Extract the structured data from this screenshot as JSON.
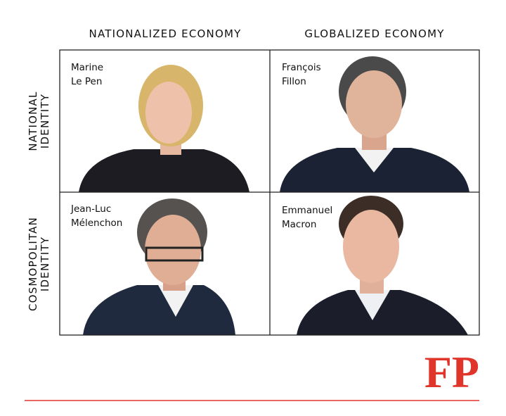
{
  "columns": [
    "NATIONALIZED ECONOMY",
    "GLOBALIZED ECONOMY"
  ],
  "rows": [
    [
      "NATIONAL",
      "IDENTITY"
    ],
    [
      "COSMOPOLITAN",
      "IDENTITY"
    ]
  ],
  "cells": [
    {
      "name": [
        "Marine",
        "Le Pen"
      ]
    },
    {
      "name": [
        "François",
        "Fillon"
      ]
    },
    {
      "name": [
        "Jean-Luc",
        "Mélenchon"
      ]
    },
    {
      "name": [
        "Emmanuel",
        "Macron"
      ]
    }
  ],
  "logo": "FP"
}
